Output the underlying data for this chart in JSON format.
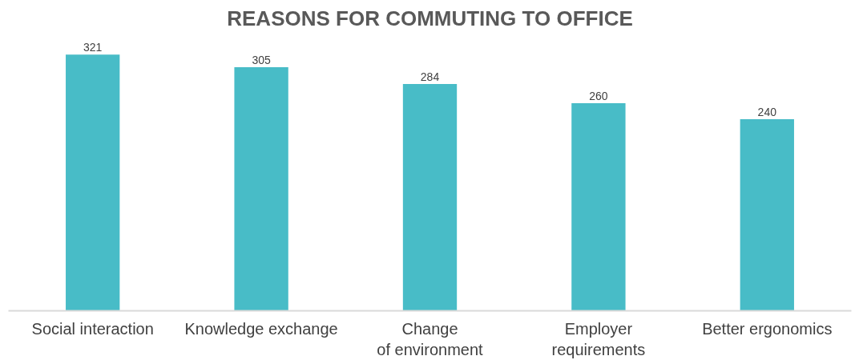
{
  "chart_data": {
    "type": "bar",
    "title": "REASONS FOR COMMUTING TO OFFICE",
    "categories": [
      "Social interaction",
      "Knowledge exchange",
      "Change of environment",
      "Employer requirements",
      "Better ergonomics"
    ],
    "values": [
      321,
      305,
      284,
      260,
      240
    ],
    "color": "#48bcc7",
    "data_labels": true
  }
}
